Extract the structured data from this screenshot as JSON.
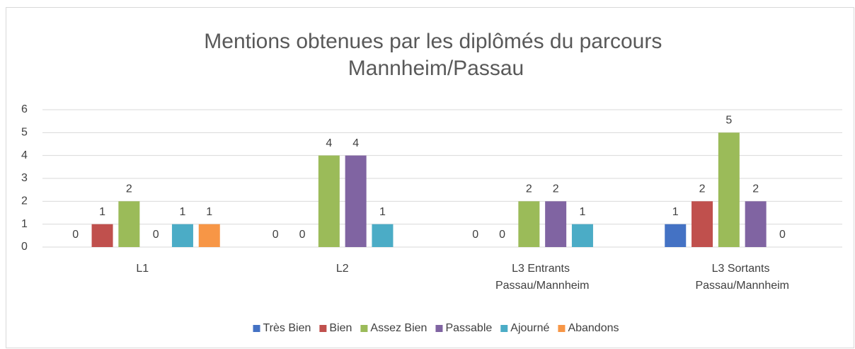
{
  "chart_data": {
    "type": "bar",
    "title": "Mentions obtenues par les diplômés du parcours Mannheim/Passau",
    "categories": [
      "L1",
      "L2",
      "L3 Entrants Passau/Mannheim",
      "L3 Sortants Passau/Mannheim"
    ],
    "series": [
      {
        "name": "Très Bien",
        "color": "#4472c4",
        "values": [
          0,
          0,
          0,
          1
        ]
      },
      {
        "name": "Bien",
        "color": "#c0504d",
        "values": [
          1,
          0,
          0,
          2
        ]
      },
      {
        "name": "Assez Bien",
        "color": "#9bbb59",
        "values": [
          2,
          4,
          2,
          5
        ]
      },
      {
        "name": "Passable",
        "color": "#8064a2",
        "values": [
          0,
          4,
          2,
          2
        ]
      },
      {
        "name": "Ajourné",
        "color": "#4bacc6",
        "values": [
          1,
          1,
          1,
          0
        ]
      },
      {
        "name": "Abandons",
        "color": "#f79646",
        "values": [
          1,
          null,
          null,
          null
        ]
      }
    ],
    "ylim": [
      0,
      6
    ],
    "yticks": [
      0,
      1,
      2,
      3,
      4,
      5,
      6
    ],
    "grid": true,
    "legend": "bottom"
  }
}
